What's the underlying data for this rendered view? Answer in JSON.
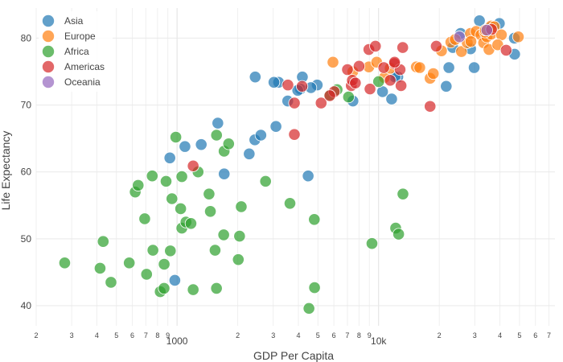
{
  "chart_data": {
    "type": "scatter",
    "xlabel": "GDP Per Capita",
    "ylabel": "Life Expectancy",
    "x_scale": "log",
    "xlim": [
      200,
      75000
    ],
    "ylim": [
      37,
      84.5
    ],
    "grid": true,
    "legend_position": "top-left",
    "x_ticks": [
      {
        "value": 200,
        "label": "2",
        "major": false
      },
      {
        "value": 300,
        "label": "3",
        "major": false
      },
      {
        "value": 400,
        "label": "4",
        "major": false
      },
      {
        "value": 500,
        "label": "5",
        "major": false
      },
      {
        "value": 600,
        "label": "6",
        "major": false
      },
      {
        "value": 700,
        "label": "7",
        "major": false
      },
      {
        "value": 800,
        "label": "8",
        "major": false
      },
      {
        "value": 900,
        "label": "9",
        "major": false
      },
      {
        "value": 1000,
        "label": "1000",
        "major": true
      },
      {
        "value": 2000,
        "label": "2",
        "major": false
      },
      {
        "value": 3000,
        "label": "3",
        "major": false
      },
      {
        "value": 4000,
        "label": "4",
        "major": false
      },
      {
        "value": 5000,
        "label": "5",
        "major": false
      },
      {
        "value": 6000,
        "label": "6",
        "major": false
      },
      {
        "value": 7000,
        "label": "7",
        "major": false
      },
      {
        "value": 8000,
        "label": "8",
        "major": false
      },
      {
        "value": 9000,
        "label": "9",
        "major": false
      },
      {
        "value": 10000,
        "label": "10k",
        "major": true
      },
      {
        "value": 20000,
        "label": "2",
        "major": false
      },
      {
        "value": 30000,
        "label": "3",
        "major": false
      },
      {
        "value": 40000,
        "label": "4",
        "major": false
      },
      {
        "value": 50000,
        "label": "5",
        "major": false
      },
      {
        "value": 60000,
        "label": "6",
        "major": false
      },
      {
        "value": 70000,
        "label": "7",
        "major": false
      }
    ],
    "y_ticks": [
      40,
      50,
      60,
      70,
      80
    ],
    "series": [
      {
        "name": "Asia",
        "color": "#1f77b4",
        "points": [
          [
            975,
            43.8
          ],
          [
            1094,
            63.8
          ],
          [
            921,
            62.1
          ],
          [
            1318,
            64.1
          ],
          [
            1593,
            67.3
          ],
          [
            1713,
            59.7
          ],
          [
            2442,
            74.2
          ],
          [
            2432,
            64.8
          ],
          [
            2605,
            65.5
          ],
          [
            2280,
            62.7
          ],
          [
            3190,
            73.4
          ],
          [
            3095,
            66.8
          ],
          [
            3025,
            73.4
          ],
          [
            3541,
            70.6
          ],
          [
            4185,
            74.2
          ],
          [
            4471,
            59.4
          ],
          [
            4959,
            73.0
          ],
          [
            4090,
            72.4
          ],
          [
            4616,
            72.6
          ],
          [
            3970,
            72.2
          ],
          [
            7458,
            70.6
          ],
          [
            10461,
            72.0
          ],
          [
            11606,
            70.9
          ],
          [
            12452,
            74.2
          ],
          [
            12057,
            74.2
          ],
          [
            21655,
            72.8
          ],
          [
            22316,
            75.6
          ],
          [
            23348,
            78.6
          ],
          [
            25523,
            80.7
          ],
          [
            28604,
            78.4
          ],
          [
            29796,
            75.6
          ],
          [
            31656,
            82.6
          ],
          [
            39725,
            82.2
          ],
          [
            47143,
            80.0
          ],
          [
            47306,
            77.6
          ],
          [
            36000,
            81.6
          ]
        ]
      },
      {
        "name": "Europe",
        "color": "#ff7f0e",
        "points": [
          [
            5937,
            76.4
          ],
          [
            7446,
            75.0
          ],
          [
            8948,
            75.7
          ],
          [
            9787,
            76.4
          ],
          [
            10680,
            74.1
          ],
          [
            11415,
            75.5
          ],
          [
            15390,
            75.7
          ],
          [
            16000,
            75.6
          ],
          [
            18009,
            74.0
          ],
          [
            18679,
            74.7
          ],
          [
            20510,
            78.1
          ],
          [
            22833,
            79.4
          ],
          [
            24000,
            79.8
          ],
          [
            25768,
            78.0
          ],
          [
            27538,
            79.3
          ],
          [
            28569,
            80.7
          ],
          [
            28718,
            79.5
          ],
          [
            30470,
            81.0
          ],
          [
            32170,
            80.5
          ],
          [
            33207,
            79.3
          ],
          [
            34435,
            80.2
          ],
          [
            36181,
            80.6
          ],
          [
            36126,
            81.8
          ],
          [
            37506,
            81.7
          ],
          [
            35278,
            78.3
          ],
          [
            40676,
            80.5
          ],
          [
            49357,
            80.2
          ],
          [
            33692,
            80.9
          ],
          [
            33860,
            81.2
          ],
          [
            39000,
            79.0
          ]
        ]
      },
      {
        "name": "Africa",
        "color": "#2ca02c",
        "points": [
          [
            277,
            46.4
          ],
          [
            415,
            45.6
          ],
          [
            430,
            49.6
          ],
          [
            470,
            43.5
          ],
          [
            579,
            46.4
          ],
          [
            620,
            57.0
          ],
          [
            641,
            58.0
          ],
          [
            691,
            53.0
          ],
          [
            706,
            44.7
          ],
          [
            753,
            59.4
          ],
          [
            759,
            48.3
          ],
          [
            825,
            42.1
          ],
          [
            863,
            46.2
          ],
          [
            862,
            42.6
          ],
          [
            882,
            58.6
          ],
          [
            926,
            48.2
          ],
          [
            943,
            56.0
          ],
          [
            986,
            65.2
          ],
          [
            1042,
            54.5
          ],
          [
            1056,
            51.6
          ],
          [
            1056,
            59.3
          ],
          [
            1107,
            52.5
          ],
          [
            1172,
            52.3
          ],
          [
            1202,
            42.4
          ],
          [
            1271,
            60.0
          ],
          [
            1441,
            56.7
          ],
          [
            1463,
            54.1
          ],
          [
            1544,
            48.3
          ],
          [
            1569,
            42.6
          ],
          [
            1570,
            65.5
          ],
          [
            1704,
            50.6
          ],
          [
            1712,
            63.1
          ],
          [
            1803,
            64.2
          ],
          [
            2013,
            46.9
          ],
          [
            2042,
            50.4
          ],
          [
            2082,
            54.8
          ],
          [
            2749,
            58.6
          ],
          [
            3632,
            55.3
          ],
          [
            4513,
            39.6
          ],
          [
            4797,
            52.9
          ],
          [
            4811,
            42.7
          ],
          [
            6223,
            72.3
          ],
          [
            7093,
            71.2
          ],
          [
            9270,
            49.3
          ],
          [
            12154,
            51.6
          ],
          [
            12570,
            50.7
          ],
          [
            13206,
            56.7
          ],
          [
            10000,
            73.5
          ],
          [
            5728,
            71.5
          ]
        ]
      },
      {
        "name": "Americas",
        "color": "#d62728",
        "points": [
          [
            1202,
            60.9
          ],
          [
            3548,
            73.0
          ],
          [
            4172,
            72.8
          ],
          [
            3822,
            70.3
          ],
          [
            5186,
            70.3
          ],
          [
            3820,
            65.6
          ],
          [
            6025,
            72.0
          ],
          [
            5728,
            71.4
          ],
          [
            7006,
            75.3
          ],
          [
            7321,
            72.9
          ],
          [
            7408,
            73.7
          ],
          [
            8948,
            78.3
          ],
          [
            9065,
            72.4
          ],
          [
            9645,
            78.8
          ],
          [
            10611,
            75.6
          ],
          [
            11978,
            76.2
          ],
          [
            12779,
            75.3
          ],
          [
            13172,
            78.6
          ],
          [
            12922,
            72.9
          ],
          [
            18008,
            69.8
          ],
          [
            19328,
            78.8
          ],
          [
            36319,
            81.3
          ],
          [
            42952,
            78.2
          ],
          [
            11416,
            73.7
          ],
          [
            12003,
            76.4
          ],
          [
            7670,
            73.3
          ],
          [
            8000,
            75.8
          ]
        ]
      },
      {
        "name": "Oceania",
        "color": "#9467bd",
        "points": [
          [
            25185,
            80.2
          ],
          [
            34435,
            81.2
          ]
        ]
      }
    ]
  }
}
